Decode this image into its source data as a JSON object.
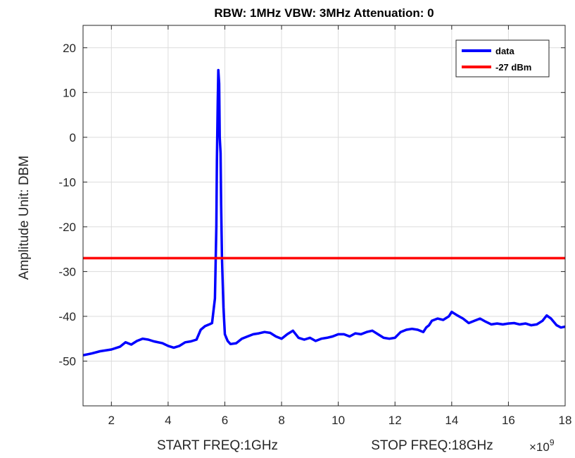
{
  "chart_data": {
    "type": "line",
    "title": "RBW: 1MHz   VBW: 3MHz  Attenuation: 0",
    "xlabel_left": "START FREQ:1GHz",
    "xlabel_right": "STOP FREQ:18GHz",
    "x_exponent_label": "×10",
    "x_exponent_power": "9",
    "ylabel": "Amplitude Unit: DBM",
    "xlim": [
      1,
      18
    ],
    "ylim": [
      -60,
      25
    ],
    "x_scale_note": "x values in units of 1e9 Hz",
    "xticks": [
      2,
      4,
      6,
      8,
      10,
      12,
      14,
      16,
      18
    ],
    "yticks": [
      20,
      10,
      0,
      -10,
      -20,
      -30,
      -40,
      -50
    ],
    "grid": true,
    "legend_position": "top-right",
    "series": [
      {
        "name": "data",
        "color": "#0000ff",
        "x": [
          1.0,
          1.3,
          1.6,
          2.0,
          2.3,
          2.5,
          2.7,
          2.9,
          3.1,
          3.3,
          3.5,
          3.8,
          4.0,
          4.2,
          4.4,
          4.6,
          4.8,
          5.0,
          5.15,
          5.3,
          5.45,
          5.55,
          5.65,
          5.7,
          5.72,
          5.75,
          5.77,
          5.8,
          5.82,
          5.85,
          5.87,
          5.9,
          5.95,
          6.0,
          6.1,
          6.2,
          6.4,
          6.6,
          6.8,
          7.0,
          7.2,
          7.4,
          7.6,
          7.8,
          8.0,
          8.2,
          8.4,
          8.6,
          8.8,
          9.0,
          9.2,
          9.4,
          9.6,
          9.8,
          10.0,
          10.2,
          10.4,
          10.6,
          10.8,
          11.0,
          11.2,
          11.4,
          11.6,
          11.8,
          12.0,
          12.2,
          12.4,
          12.6,
          12.8,
          13.0,
          13.1,
          13.2,
          13.3,
          13.5,
          13.7,
          13.9,
          14.0,
          14.2,
          14.4,
          14.6,
          14.8,
          15.0,
          15.2,
          15.4,
          15.6,
          15.8,
          16.0,
          16.2,
          16.4,
          16.6,
          16.8,
          17.0,
          17.2,
          17.35,
          17.5,
          17.7,
          17.85,
          18.0
        ],
        "y": [
          -48.7,
          -48.3,
          -47.8,
          -47.4,
          -46.8,
          -45.8,
          -46.3,
          -45.5,
          -45.0,
          -45.2,
          -45.6,
          -46.0,
          -46.6,
          -47.0,
          -46.6,
          -45.8,
          -45.6,
          -45.2,
          -43.0,
          -42.2,
          -41.8,
          -41.5,
          -36.0,
          -20.0,
          -5.0,
          8.0,
          15.0,
          12.0,
          0.0,
          -3.5,
          -15.0,
          -27.0,
          -38.0,
          -44.0,
          -45.5,
          -46.2,
          -46.0,
          -45.0,
          -44.5,
          -44.0,
          -43.8,
          -43.5,
          -43.7,
          -44.5,
          -45.0,
          -44.0,
          -43.2,
          -44.8,
          -45.2,
          -44.8,
          -45.5,
          -45.0,
          -44.8,
          -44.5,
          -44.0,
          -44.0,
          -44.5,
          -43.8,
          -44.0,
          -43.5,
          -43.2,
          -44.0,
          -44.8,
          -45.0,
          -44.8,
          -43.5,
          -43.0,
          -42.8,
          -43.0,
          -43.5,
          -42.5,
          -42.0,
          -41.0,
          -40.5,
          -40.8,
          -40.0,
          -39.0,
          -39.8,
          -40.5,
          -41.5,
          -41.0,
          -40.5,
          -41.2,
          -41.8,
          -41.6,
          -41.8,
          -41.6,
          -41.5,
          -41.8,
          -41.6,
          -42.0,
          -41.8,
          -41.0,
          -39.8,
          -40.5,
          -42.0,
          -42.5,
          -42.3
        ]
      },
      {
        "name": "-27 dBm",
        "color": "#ff0000",
        "x": [
          1,
          18
        ],
        "y": [
          -27,
          -27
        ]
      }
    ]
  }
}
